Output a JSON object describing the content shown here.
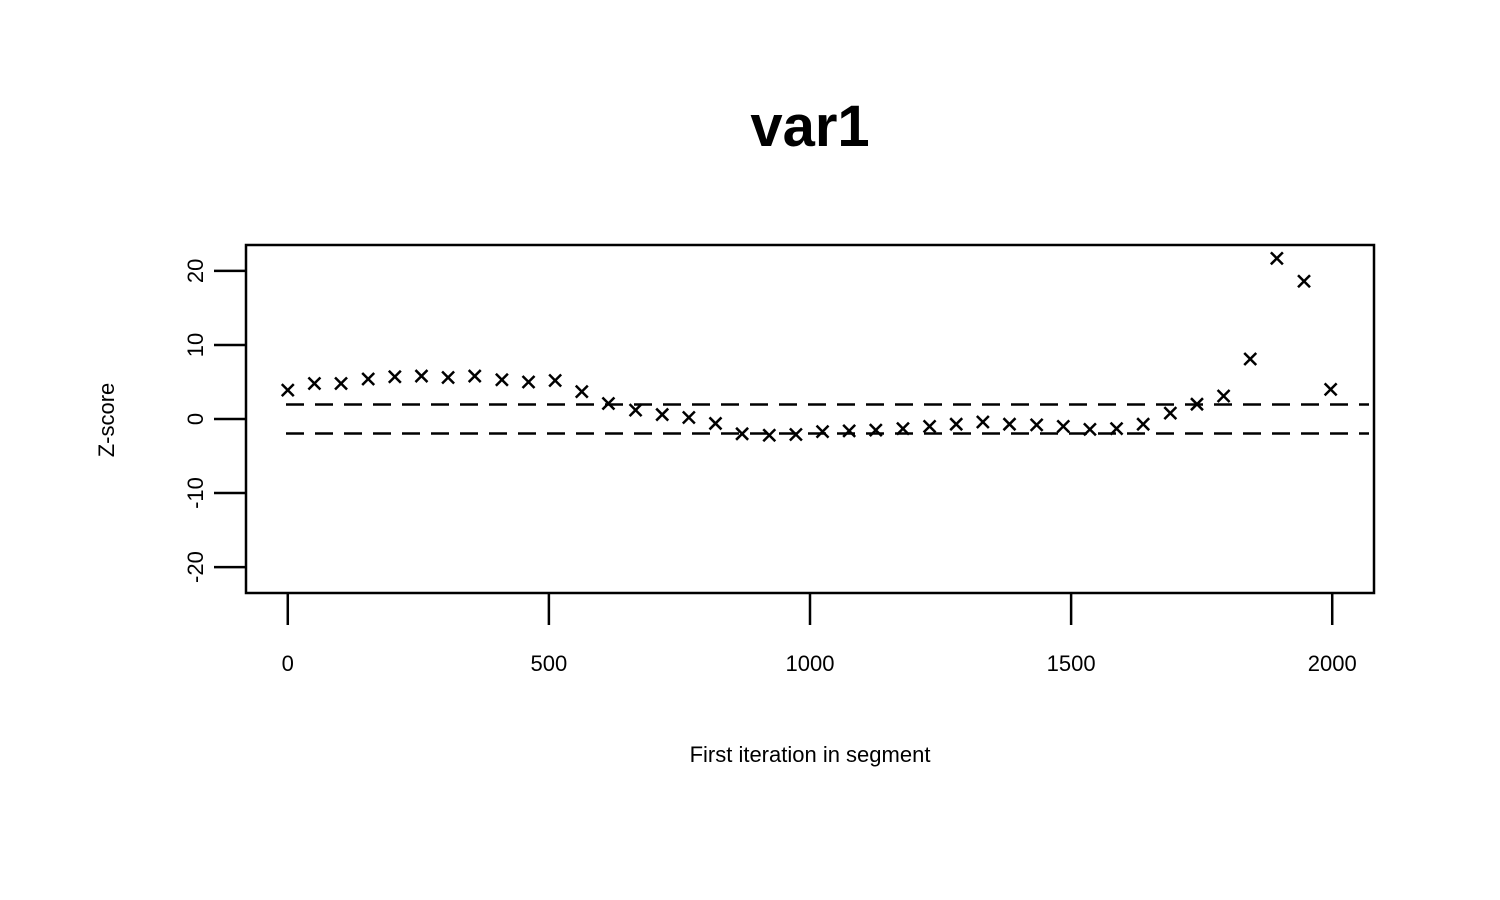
{
  "chart_data": {
    "type": "scatter",
    "title": "var1",
    "xlabel": "First iteration in segment",
    "ylabel": "Z-score",
    "xlim": [
      -80,
      2080
    ],
    "ylim": [
      -23.5,
      23.5
    ],
    "x_ticks": [
      0,
      500,
      1000,
      1500,
      2000
    ],
    "x_tick_labels": [
      "0",
      "500",
      "1000",
      "1500",
      "2000"
    ],
    "y_ticks": [
      -20,
      -10,
      0,
      10,
      20
    ],
    "y_tick_labels": [
      "-20",
      "-10",
      "0",
      "10",
      "20"
    ],
    "reference_lines": [
      1.96,
      -1.96
    ],
    "marker": "x",
    "grid": false,
    "points": [
      {
        "x": 0,
        "y": 3.9
      },
      {
        "x": 51,
        "y": 4.8
      },
      {
        "x": 102,
        "y": 4.8
      },
      {
        "x": 154,
        "y": 5.4
      },
      {
        "x": 205,
        "y": 5.7
      },
      {
        "x": 256,
        "y": 5.8
      },
      {
        "x": 307,
        "y": 5.6
      },
      {
        "x": 358,
        "y": 5.8
      },
      {
        "x": 410,
        "y": 5.3
      },
      {
        "x": 461,
        "y": 5.0
      },
      {
        "x": 512,
        "y": 5.2
      },
      {
        "x": 563,
        "y": 3.7
      },
      {
        "x": 614,
        "y": 2.1
      },
      {
        "x": 666,
        "y": 1.2
      },
      {
        "x": 717,
        "y": 0.6
      },
      {
        "x": 768,
        "y": 0.2
      },
      {
        "x": 819,
        "y": -0.6
      },
      {
        "x": 870,
        "y": -2.0
      },
      {
        "x": 922,
        "y": -2.2
      },
      {
        "x": 973,
        "y": -2.1
      },
      {
        "x": 1024,
        "y": -1.7
      },
      {
        "x": 1075,
        "y": -1.6
      },
      {
        "x": 1126,
        "y": -1.5
      },
      {
        "x": 1178,
        "y": -1.3
      },
      {
        "x": 1229,
        "y": -1.0
      },
      {
        "x": 1280,
        "y": -0.7
      },
      {
        "x": 1331,
        "y": -0.4
      },
      {
        "x": 1382,
        "y": -0.7
      },
      {
        "x": 1434,
        "y": -0.8
      },
      {
        "x": 1485,
        "y": -1.0
      },
      {
        "x": 1536,
        "y": -1.4
      },
      {
        "x": 1587,
        "y": -1.3
      },
      {
        "x": 1638,
        "y": -0.7
      },
      {
        "x": 1690,
        "y": 0.8
      },
      {
        "x": 1741,
        "y": 2.0
      },
      {
        "x": 1792,
        "y": 3.1
      },
      {
        "x": 1843,
        "y": 8.1
      },
      {
        "x": 1894,
        "y": 21.7
      },
      {
        "x": 1946,
        "y": 18.6
      },
      {
        "x": 1997,
        "y": 4.0
      }
    ]
  }
}
